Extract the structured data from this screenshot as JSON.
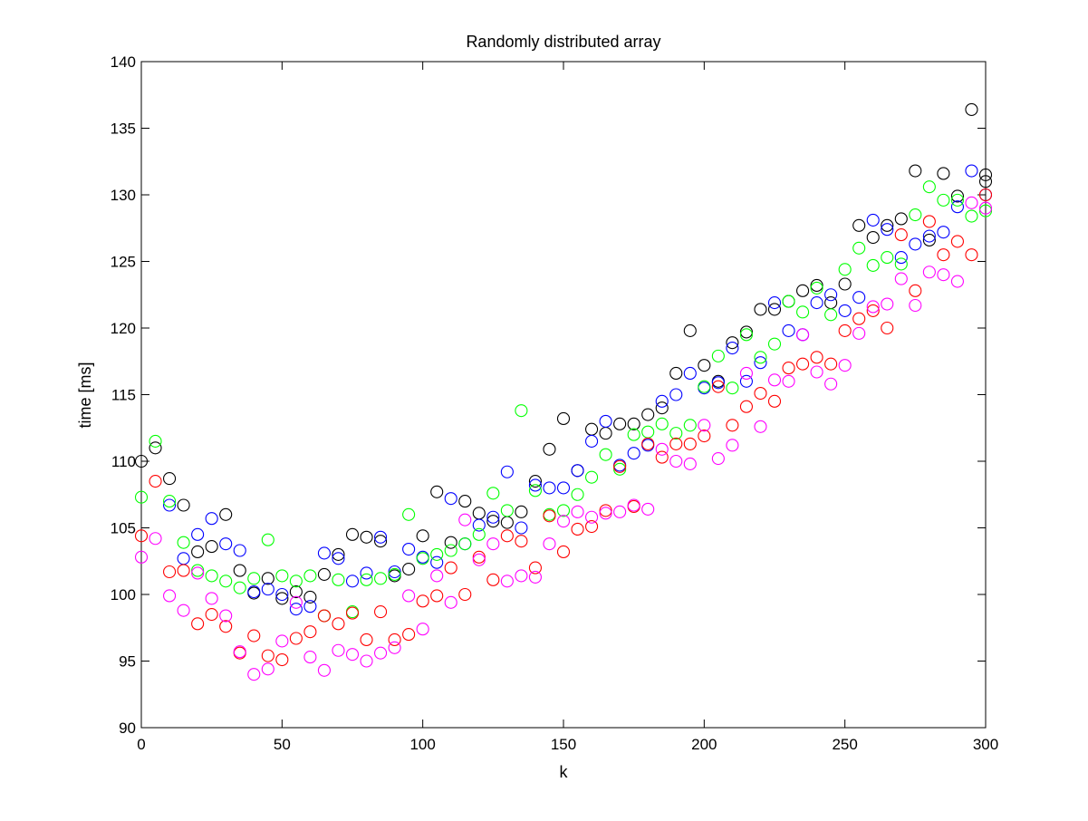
{
  "chart_data": {
    "type": "scatter",
    "title": "Randomly distributed array",
    "xlabel": "k",
    "ylabel": "time [ms]",
    "xlim": [
      0,
      300
    ],
    "ylim": [
      90,
      140
    ],
    "xticks": [
      "0",
      "50",
      "100",
      "150",
      "200",
      "250",
      "300"
    ],
    "yticks": [
      "90",
      "95",
      "100",
      "105",
      "110",
      "115",
      "120",
      "125",
      "130",
      "135",
      "140"
    ],
    "grid": false,
    "legend": "none",
    "marker": "circle",
    "series": [
      {
        "color": "#000000",
        "points": [
          [
            0,
            110
          ],
          [
            5,
            111
          ],
          [
            10,
            108.7
          ],
          [
            15,
            106.7
          ],
          [
            20,
            103.2
          ],
          [
            25,
            103.6
          ],
          [
            30,
            106
          ],
          [
            35,
            101.8
          ],
          [
            40,
            100.1
          ],
          [
            45,
            101.2
          ],
          [
            50,
            99.7
          ],
          [
            55,
            100.2
          ],
          [
            60,
            99.8
          ],
          [
            65,
            101.5
          ],
          [
            70,
            103
          ],
          [
            75,
            104.5
          ],
          [
            80,
            104.3
          ],
          [
            85,
            104
          ],
          [
            90,
            101.4
          ],
          [
            95,
            101.9
          ],
          [
            100,
            104.4
          ],
          [
            105,
            107.7
          ],
          [
            110,
            103.9
          ],
          [
            115,
            107
          ],
          [
            120,
            106.1
          ],
          [
            125,
            105.5
          ],
          [
            130,
            105.4
          ],
          [
            135,
            106.2
          ],
          [
            140,
            108.5
          ],
          [
            145,
            110.9
          ],
          [
            150,
            113.2
          ],
          [
            155,
            109.3
          ],
          [
            160,
            112.4
          ],
          [
            165,
            112.1
          ],
          [
            170,
            112.8
          ],
          [
            175,
            112.8
          ],
          [
            180,
            113.5
          ],
          [
            185,
            114
          ],
          [
            190,
            116.6
          ],
          [
            195,
            119.8
          ],
          [
            200,
            117.2
          ],
          [
            205,
            116
          ],
          [
            210,
            118.9
          ],
          [
            215,
            119.7
          ],
          [
            220,
            121.4
          ],
          [
            225,
            121.4
          ],
          [
            230,
            122
          ],
          [
            235,
            122.8
          ],
          [
            240,
            123.2
          ],
          [
            245,
            121.9
          ],
          [
            250,
            123.3
          ],
          [
            255,
            127.7
          ],
          [
            260,
            126.8
          ],
          [
            265,
            127.7
          ],
          [
            270,
            128.2
          ],
          [
            275,
            131.8
          ],
          [
            280,
            126.6
          ],
          [
            285,
            131.6
          ],
          [
            290,
            129.9
          ],
          [
            295,
            136.4
          ],
          [
            300,
            131.5
          ],
          [
            300,
            131
          ]
        ]
      },
      {
        "color": "#0000ff",
        "points": [
          [
            10,
            106.7
          ],
          [
            15,
            102.7
          ],
          [
            20,
            104.5
          ],
          [
            25,
            105.7
          ],
          [
            30,
            103.8
          ],
          [
            35,
            103.3
          ],
          [
            40,
            100.2
          ],
          [
            45,
            100.4
          ],
          [
            50,
            100
          ],
          [
            55,
            98.9
          ],
          [
            60,
            99.1
          ],
          [
            65,
            103.1
          ],
          [
            70,
            102.7
          ],
          [
            75,
            101
          ],
          [
            80,
            101.6
          ],
          [
            85,
            104.3
          ],
          [
            90,
            101.7
          ],
          [
            95,
            103.4
          ],
          [
            100,
            102.8
          ],
          [
            105,
            102.4
          ],
          [
            110,
            107.2
          ],
          [
            115,
            103.8
          ],
          [
            120,
            105.2
          ],
          [
            125,
            105.8
          ],
          [
            130,
            109.2
          ],
          [
            135,
            105
          ],
          [
            140,
            108.2
          ],
          [
            145,
            108
          ],
          [
            150,
            108
          ],
          [
            155,
            109.3
          ],
          [
            160,
            111.5
          ],
          [
            165,
            113
          ],
          [
            170,
            109.7
          ],
          [
            175,
            110.6
          ],
          [
            180,
            111.2
          ],
          [
            185,
            114.5
          ],
          [
            190,
            115
          ],
          [
            195,
            116.6
          ],
          [
            200,
            115.5
          ],
          [
            205,
            115.9
          ],
          [
            210,
            118.5
          ],
          [
            215,
            116
          ],
          [
            220,
            117.4
          ],
          [
            225,
            121.9
          ],
          [
            230,
            119.8
          ],
          [
            235,
            119.5
          ],
          [
            240,
            121.9
          ],
          [
            245,
            122.5
          ],
          [
            250,
            121.3
          ],
          [
            255,
            122.3
          ],
          [
            260,
            128.1
          ],
          [
            265,
            127.4
          ],
          [
            270,
            125.3
          ],
          [
            275,
            126.3
          ],
          [
            280,
            126.9
          ],
          [
            285,
            127.2
          ],
          [
            290,
            129.1
          ],
          [
            295,
            131.8
          ],
          [
            300,
            130
          ]
        ]
      },
      {
        "color": "#00ff00",
        "points": [
          [
            0,
            107.3
          ],
          [
            5,
            111.5
          ],
          [
            10,
            107
          ],
          [
            15,
            103.9
          ],
          [
            20,
            101.8
          ],
          [
            25,
            101.4
          ],
          [
            30,
            101
          ],
          [
            35,
            100.5
          ],
          [
            40,
            101.2
          ],
          [
            45,
            104.1
          ],
          [
            50,
            101.4
          ],
          [
            55,
            101
          ],
          [
            60,
            101.4
          ],
          [
            65,
            98.4
          ],
          [
            70,
            101.1
          ],
          [
            75,
            98.7
          ],
          [
            80,
            101.1
          ],
          [
            85,
            101.2
          ],
          [
            90,
            101.5
          ],
          [
            95,
            106
          ],
          [
            100,
            102.7
          ],
          [
            105,
            103
          ],
          [
            110,
            103.3
          ],
          [
            115,
            103.8
          ],
          [
            120,
            104.5
          ],
          [
            125,
            107.6
          ],
          [
            130,
            106.3
          ],
          [
            135,
            113.8
          ],
          [
            140,
            107.8
          ],
          [
            145,
            106
          ],
          [
            150,
            106.3
          ],
          [
            155,
            107.5
          ],
          [
            160,
            108.8
          ],
          [
            165,
            110.5
          ],
          [
            170,
            109.4
          ],
          [
            175,
            112
          ],
          [
            180,
            112.2
          ],
          [
            185,
            112.8
          ],
          [
            190,
            112.1
          ],
          [
            195,
            112.7
          ],
          [
            200,
            115.6
          ],
          [
            205,
            117.9
          ],
          [
            210,
            115.5
          ],
          [
            215,
            119.5
          ],
          [
            220,
            117.8
          ],
          [
            225,
            118.8
          ],
          [
            230,
            122
          ],
          [
            235,
            121.2
          ],
          [
            240,
            123
          ],
          [
            245,
            121
          ],
          [
            250,
            124.4
          ],
          [
            255,
            126
          ],
          [
            260,
            124.7
          ],
          [
            265,
            125.3
          ],
          [
            270,
            124.8
          ],
          [
            275,
            128.5
          ],
          [
            280,
            130.6
          ],
          [
            285,
            129.6
          ],
          [
            290,
            129.6
          ],
          [
            295,
            128.4
          ],
          [
            300,
            128.8
          ]
        ]
      },
      {
        "color": "#ff0000",
        "points": [
          [
            0,
            104.4
          ],
          [
            5,
            108.5
          ],
          [
            10,
            101.7
          ],
          [
            15,
            101.8
          ],
          [
            20,
            97.8
          ],
          [
            25,
            98.5
          ],
          [
            30,
            97.6
          ],
          [
            35,
            95.6
          ],
          [
            40,
            96.9
          ],
          [
            45,
            95.4
          ],
          [
            50,
            95.1
          ],
          [
            55,
            96.7
          ],
          [
            60,
            97.2
          ],
          [
            65,
            98.4
          ],
          [
            70,
            97.8
          ],
          [
            75,
            98.6
          ],
          [
            80,
            96.6
          ],
          [
            85,
            98.7
          ],
          [
            90,
            96.6
          ],
          [
            95,
            97
          ],
          [
            100,
            99.5
          ],
          [
            105,
            99.9
          ],
          [
            110,
            102
          ],
          [
            115,
            100
          ],
          [
            120,
            102.8
          ],
          [
            125,
            101.1
          ],
          [
            130,
            104.4
          ],
          [
            135,
            104
          ],
          [
            140,
            102
          ],
          [
            145,
            105.9
          ],
          [
            150,
            103.2
          ],
          [
            155,
            104.9
          ],
          [
            160,
            105.1
          ],
          [
            165,
            106.3
          ],
          [
            170,
            109.6
          ],
          [
            175,
            106.6
          ],
          [
            180,
            111.3
          ],
          [
            185,
            110.3
          ],
          [
            190,
            111.3
          ],
          [
            195,
            111.3
          ],
          [
            200,
            111.9
          ],
          [
            205,
            115.6
          ],
          [
            210,
            112.7
          ],
          [
            215,
            114.1
          ],
          [
            220,
            115.1
          ],
          [
            225,
            114.5
          ],
          [
            230,
            117
          ],
          [
            235,
            117.3
          ],
          [
            240,
            117.8
          ],
          [
            245,
            117.3
          ],
          [
            250,
            119.8
          ],
          [
            255,
            120.7
          ],
          [
            260,
            121.3
          ],
          [
            265,
            120
          ],
          [
            270,
            127
          ],
          [
            275,
            122.8
          ],
          [
            280,
            128
          ],
          [
            285,
            125.5
          ],
          [
            290,
            126.5
          ],
          [
            295,
            125.5
          ],
          [
            300,
            130
          ]
        ]
      },
      {
        "color": "#ff00ff",
        "points": [
          [
            0,
            102.8
          ],
          [
            5,
            104.2
          ],
          [
            10,
            99.9
          ],
          [
            15,
            98.8
          ],
          [
            20,
            101.6
          ],
          [
            25,
            99.7
          ],
          [
            30,
            98.4
          ],
          [
            35,
            95.7
          ],
          [
            40,
            94
          ],
          [
            45,
            94.4
          ],
          [
            50,
            96.5
          ],
          [
            55,
            99.4
          ],
          [
            60,
            95.3
          ],
          [
            65,
            94.3
          ],
          [
            70,
            95.8
          ],
          [
            75,
            95.5
          ],
          [
            80,
            95
          ],
          [
            85,
            95.6
          ],
          [
            90,
            96
          ],
          [
            95,
            99.9
          ],
          [
            100,
            97.4
          ],
          [
            105,
            101.4
          ],
          [
            110,
            99.4
          ],
          [
            115,
            105.6
          ],
          [
            120,
            102.6
          ],
          [
            125,
            103.8
          ],
          [
            130,
            101
          ],
          [
            135,
            101.4
          ],
          [
            140,
            101.3
          ],
          [
            145,
            103.8
          ],
          [
            150,
            105.5
          ],
          [
            155,
            106.2
          ],
          [
            160,
            105.8
          ],
          [
            165,
            106.1
          ],
          [
            170,
            106.2
          ],
          [
            175,
            106.7
          ],
          [
            180,
            106.4
          ],
          [
            185,
            110.9
          ],
          [
            190,
            110
          ],
          [
            195,
            109.8
          ],
          [
            200,
            112.7
          ],
          [
            205,
            110.2
          ],
          [
            210,
            111.2
          ],
          [
            215,
            116.6
          ],
          [
            220,
            112.6
          ],
          [
            225,
            116.1
          ],
          [
            230,
            116
          ],
          [
            235,
            119.5
          ],
          [
            240,
            116.7
          ],
          [
            245,
            115.8
          ],
          [
            250,
            117.2
          ],
          [
            255,
            119.6
          ],
          [
            260,
            121.6
          ],
          [
            265,
            121.8
          ],
          [
            270,
            123.7
          ],
          [
            275,
            121.7
          ],
          [
            280,
            124.2
          ],
          [
            285,
            124
          ],
          [
            290,
            123.5
          ],
          [
            295,
            129.4
          ],
          [
            300,
            129
          ]
        ]
      }
    ]
  }
}
